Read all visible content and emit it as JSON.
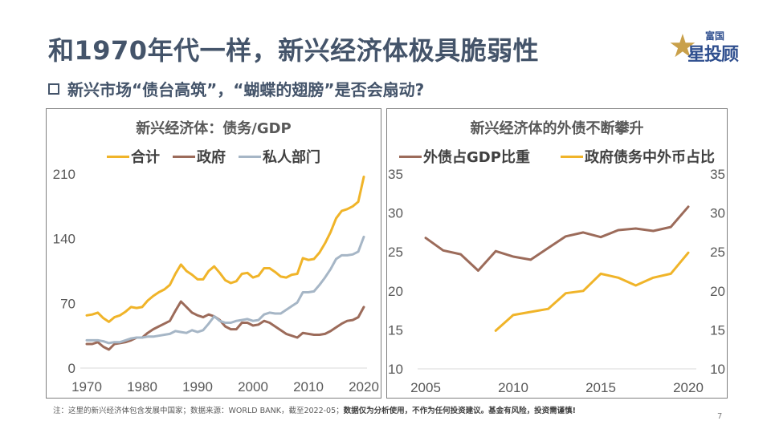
{
  "page": {
    "title": "和1970年代一样，新兴经济体极具脆弱性",
    "subtitle": "新兴市场“债台高筑”，“蝴蝶的翅膀”是否会扇动?",
    "logo": {
      "top": "富国",
      "star": "★",
      "main": "星投顾"
    },
    "footnote_plain": "注：这里的新兴经济体包含发展中国家；数据来源：WORLD BANK，截至2022-05；",
    "footnote_bold": "数据仅为分析使用，不作为任何投资建议。基金有风险，投资需谨慎!",
    "page_number": "7"
  },
  "chart_data": [
    {
      "type": "line",
      "title": "新兴经济体：债务/GDP",
      "xlabel": "",
      "ylabel": "",
      "xlim": [
        1970,
        2020
      ],
      "ylim": [
        0,
        210
      ],
      "xticks": [
        1970,
        1980,
        1990,
        2000,
        2010,
        2020
      ],
      "yticks": [
        0,
        70,
        140,
        210
      ],
      "legend_position": "top",
      "grid": false,
      "x": [
        1970,
        1971,
        1972,
        1973,
        1974,
        1975,
        1976,
        1977,
        1978,
        1979,
        1980,
        1981,
        1982,
        1983,
        1984,
        1985,
        1986,
        1987,
        1988,
        1989,
        1990,
        1991,
        1992,
        1993,
        1994,
        1995,
        1996,
        1997,
        1998,
        1999,
        2000,
        2001,
        2002,
        2003,
        2004,
        2005,
        2006,
        2007,
        2008,
        2009,
        2010,
        2011,
        2012,
        2013,
        2014,
        2015,
        2016,
        2017,
        2018,
        2019,
        2020
      ],
      "series": [
        {
          "name": "合计",
          "color": "#f0b429",
          "values": [
            57,
            58,
            60,
            54,
            50,
            55,
            57,
            61,
            66,
            65,
            66,
            73,
            78,
            82,
            85,
            90,
            102,
            112,
            105,
            101,
            96,
            96,
            105,
            110,
            103,
            95,
            92,
            94,
            102,
            103,
            98,
            100,
            108,
            108,
            104,
            99,
            98,
            101,
            102,
            119,
            117,
            118,
            125,
            135,
            147,
            162,
            170,
            172,
            175,
            180,
            207
          ]
        },
        {
          "name": "政府",
          "color": "#9c6b5a",
          "values": [
            26,
            26,
            28,
            23,
            20,
            26,
            27,
            28,
            30,
            33,
            33,
            38,
            42,
            45,
            48,
            51,
            62,
            72,
            66,
            60,
            57,
            55,
            58,
            56,
            52,
            45,
            42,
            42,
            49,
            49,
            46,
            47,
            51,
            49,
            45,
            41,
            37,
            35,
            33,
            38,
            37,
            36,
            36,
            37,
            40,
            44,
            48,
            51,
            52,
            55,
            66
          ]
        },
        {
          "name": "私人部门",
          "color": "#a6b6c6",
          "values": [
            30,
            30,
            30,
            29,
            27,
            28,
            28,
            30,
            32,
            33,
            33,
            34,
            34,
            35,
            36,
            37,
            40,
            39,
            38,
            41,
            39,
            41,
            48,
            56,
            51,
            49,
            49,
            51,
            52,
            53,
            51,
            52,
            58,
            60,
            59,
            59,
            63,
            67,
            71,
            82,
            82,
            83,
            90,
            98,
            107,
            118,
            122,
            122,
            123,
            126,
            142
          ]
        }
      ]
    },
    {
      "type": "line",
      "title": "新兴经济体的外债不断攀升",
      "xlabel": "",
      "ylabel": "",
      "xlim": [
        2005,
        2020
      ],
      "ylim": [
        10,
        35
      ],
      "y2lim": [
        10,
        35
      ],
      "xticks": [
        2005,
        2010,
        2015,
        2020
      ],
      "yticks": [
        10,
        15,
        20,
        25,
        30,
        35
      ],
      "y2ticks": [
        10,
        15,
        20,
        25,
        30,
        35
      ],
      "legend_position": "top",
      "grid": false,
      "series": [
        {
          "name": "外债占GDP比重",
          "color": "#9c6b5a",
          "axis": "left",
          "x": [
            2005,
            2006,
            2007,
            2008,
            2009,
            2010,
            2011,
            2012,
            2013,
            2014,
            2015,
            2016,
            2017,
            2018,
            2019,
            2020
          ],
          "values": [
            26.8,
            25.2,
            24.7,
            22.6,
            25.1,
            24.4,
            24.0,
            25.5,
            27.0,
            27.5,
            26.9,
            27.8,
            28.0,
            27.7,
            28.2,
            30.8
          ]
        },
        {
          "name": "政府债务中外币占比",
          "color": "#f0b429",
          "axis": "right",
          "x": [
            2009,
            2010,
            2011,
            2012,
            2013,
            2014,
            2015,
            2016,
            2017,
            2018,
            2019,
            2020
          ],
          "values": [
            14.9,
            16.9,
            17.3,
            17.7,
            19.7,
            20.0,
            22.2,
            21.7,
            20.7,
            21.7,
            22.2,
            24.9
          ]
        }
      ]
    }
  ]
}
